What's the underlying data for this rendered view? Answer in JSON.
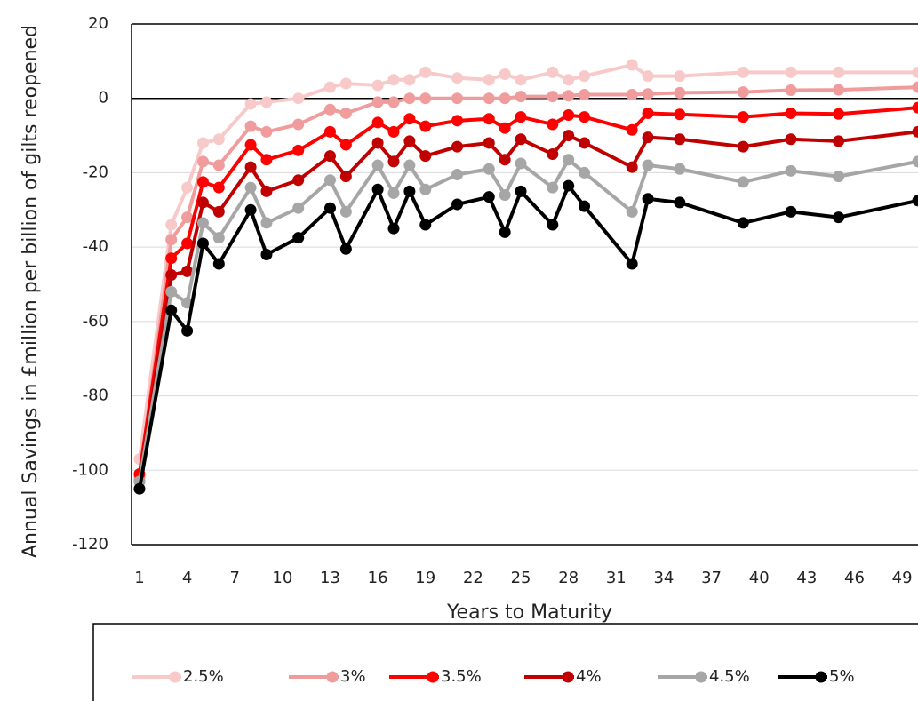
{
  "chart_data": {
    "type": "line",
    "x_label": "Years to Maturity",
    "y_label": "Annual Savings in £million per billion of gilts reopened",
    "x": [
      1,
      3,
      4,
      5,
      6,
      8,
      9,
      11,
      13,
      14,
      16,
      17,
      18,
      19,
      21,
      23,
      24,
      25,
      27,
      28,
      29,
      32,
      33,
      35,
      39,
      42,
      45,
      50
    ],
    "series": [
      {
        "name": "2.5%",
        "color": "#f8c9c9",
        "values": [
          -97,
          -34,
          -24,
          -12,
          -11,
          -1.5,
          -1,
          0,
          3,
          4,
          3.5,
          5,
          5,
          7,
          5.5,
          5,
          6.5,
          5,
          7,
          5,
          6,
          9,
          6,
          6,
          7,
          7,
          7,
          7
        ]
      },
      {
        "name": "3%",
        "color": "#f09c9c",
        "values": [
          -102,
          -38,
          -32,
          -17,
          -18,
          -7.5,
          -9,
          -7,
          -3,
          -4,
          -1,
          -1,
          0,
          0,
          0,
          0,
          0,
          0.5,
          0.5,
          0.7,
          1,
          1,
          1.2,
          1.5,
          1.7,
          2.2,
          2.3,
          3
        ]
      },
      {
        "name": "3.5%",
        "color": "#ff0000",
        "values": [
          -101,
          -43,
          -39,
          -22.5,
          -24,
          -12.5,
          -16.5,
          -14,
          -9,
          -12.5,
          -6.5,
          -9,
          -5.5,
          -7.5,
          -6,
          -5.5,
          -8,
          -5,
          -7,
          -4.5,
          -5,
          -8.5,
          -4,
          -4.3,
          -5,
          -4,
          -4.2,
          -2.5
        ]
      },
      {
        "name": "4%",
        "color": "#c00000",
        "values": [
          -103,
          -47.5,
          -46.5,
          -28,
          -30.5,
          -18.5,
          -25,
          -22,
          -15.5,
          -21,
          -12,
          -17,
          -11.5,
          -15.5,
          -13,
          -12,
          -16.5,
          -11,
          -15,
          -10,
          -12,
          -18.5,
          -10.5,
          -11,
          -13,
          -11,
          -11.5,
          -9
        ]
      },
      {
        "name": "4.5%",
        "color": "#a6a6a6",
        "values": [
          -103,
          -52,
          -55,
          -33.5,
          -37.5,
          -24,
          -33.5,
          -29.5,
          -22,
          -30.5,
          -18,
          -25.5,
          -18,
          -24.5,
          -20.5,
          -19,
          -26,
          -17.5,
          -24,
          -16.5,
          -20,
          -30.5,
          -18,
          -19,
          -22.5,
          -19.5,
          -21,
          -17
        ]
      },
      {
        "name": "5%",
        "color": "#000000",
        "values": [
          -105,
          -57,
          -62.5,
          -39,
          -44.5,
          -30,
          -42,
          -37.5,
          -29.5,
          -40.5,
          -24.5,
          -35,
          -25,
          -34,
          -28.5,
          -26.5,
          -36,
          -25,
          -34,
          -23.5,
          -29,
          -44.5,
          -27,
          -28,
          -33.5,
          -30.5,
          -32,
          -27.5
        ]
      }
    ],
    "xlim": [
      0.5,
      50
    ],
    "xticks": [
      1,
      4,
      7,
      10,
      13,
      16,
      19,
      22,
      25,
      28,
      31,
      34,
      37,
      40,
      43,
      46,
      49
    ],
    "ylim": [
      -120,
      20
    ],
    "yticks": [
      -120,
      -100,
      -80,
      -60,
      -40,
      -20,
      0,
      20
    ],
    "grid": true,
    "legend": "bottom"
  }
}
